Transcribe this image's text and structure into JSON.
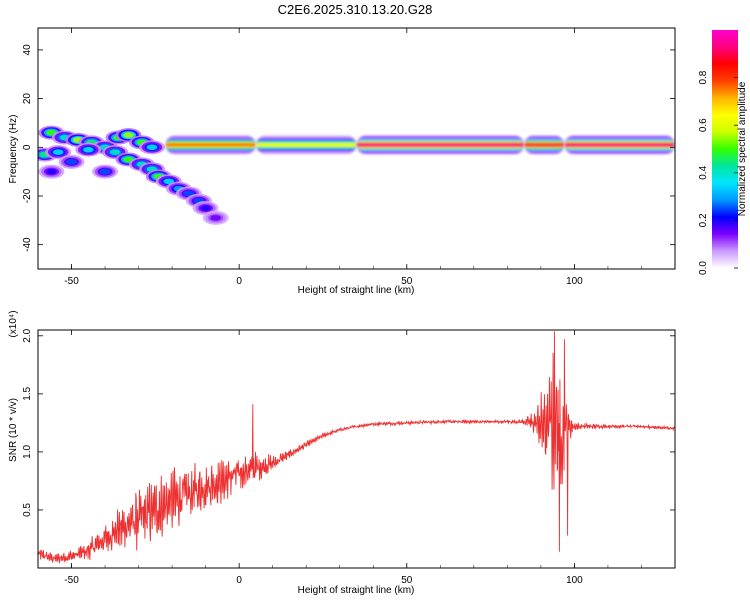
{
  "title": "C2E6.2025.310.13.20.G28",
  "chart_data": [
    {
      "type": "heatmap",
      "xlabel": "Height of straight line (km)",
      "ylabel": "Frequency (Hz)",
      "xlim": [
        -60,
        130
      ],
      "ylim": [
        -50,
        49
      ],
      "xticks": [
        -50,
        0,
        50,
        100
      ],
      "yticks": [
        -40,
        -20,
        0,
        20,
        40
      ],
      "colorbar": {
        "label": "Normalized spectral amplitude",
        "range": [
          0,
          1
        ],
        "ticks": [
          "0.0",
          "0.2",
          "0.4",
          "0.6",
          "0.8"
        ],
        "colors": [
          "#ffffff",
          "#cc99ff",
          "#7b00ff",
          "#0000ff",
          "#0099ff",
          "#00e5ff",
          "#00e5a0",
          "#33ff00",
          "#ccff00",
          "#ffff00",
          "#ffb300",
          "#ff4000",
          "#ff0000",
          "#ff0080",
          "#ff00cc"
        ]
      },
      "band": {
        "center_hz": 1,
        "segments": [
          {
            "x_start": -22,
            "x_end": 5,
            "peak": 0.8
          },
          {
            "x_start": 5,
            "x_end": 35,
            "peak": 0.65
          },
          {
            "x_start": 35,
            "x_end": 85,
            "peak": 0.95
          },
          {
            "x_start": 85,
            "x_end": 97,
            "peak": 0.9
          },
          {
            "x_start": 97,
            "x_end": 130,
            "peak": 0.95
          }
        ]
      },
      "scatter_blobs": [
        {
          "x": -56,
          "y": 6,
          "v": 0.45
        },
        {
          "x": -52,
          "y": 4,
          "v": 0.35
        },
        {
          "x": -48,
          "y": 3,
          "v": 0.5
        },
        {
          "x": -44,
          "y": 2,
          "v": 0.4
        },
        {
          "x": -40,
          "y": 0,
          "v": 0.35
        },
        {
          "x": -36,
          "y": 4,
          "v": 0.45
        },
        {
          "x": -33,
          "y": 5,
          "v": 0.5
        },
        {
          "x": -29,
          "y": 2,
          "v": 0.45
        },
        {
          "x": -26,
          "y": 0,
          "v": 0.3
        },
        {
          "x": -58,
          "y": -3,
          "v": 0.4
        },
        {
          "x": -54,
          "y": -2,
          "v": 0.3
        },
        {
          "x": -45,
          "y": -1,
          "v": 0.3
        },
        {
          "x": -37,
          "y": -2,
          "v": 0.35
        },
        {
          "x": -33,
          "y": -5,
          "v": 0.45
        },
        {
          "x": -29,
          "y": -7,
          "v": 0.35
        },
        {
          "x": -26,
          "y": -9,
          "v": 0.35
        },
        {
          "x": -24,
          "y": -12,
          "v": 0.45
        },
        {
          "x": -21,
          "y": -14,
          "v": 0.3
        },
        {
          "x": -18,
          "y": -17,
          "v": 0.25
        },
        {
          "x": -15,
          "y": -19,
          "v": 0.2
        },
        {
          "x": -12,
          "y": -22,
          "v": 0.2
        },
        {
          "x": -10,
          "y": -25,
          "v": 0.15
        },
        {
          "x": -7,
          "y": -29,
          "v": 0.1
        },
        {
          "x": -40,
          "y": -10,
          "v": 0.2
        },
        {
          "x": -50,
          "y": -6,
          "v": 0.2
        },
        {
          "x": -56,
          "y": -10,
          "v": 0.15
        }
      ]
    },
    {
      "type": "line",
      "xlabel": "Height of straight line (km)",
      "ylabel": "SNR (10 * v/v)",
      "y_multiplier": "(x10⁴)",
      "xlim": [
        -60,
        130
      ],
      "ylim": [
        0,
        2.05
      ],
      "xticks": [
        -50,
        0,
        50,
        100
      ],
      "yticks": [
        "0.5",
        "1.0",
        "1.5",
        "2.0"
      ],
      "color": "#ee3030",
      "envelope": {
        "x": [
          -60,
          -55,
          -50,
          -45,
          -40,
          -35,
          -30,
          -25,
          -20,
          -15,
          -10,
          -5,
          0,
          5,
          10,
          15,
          20,
          25,
          30,
          35,
          40,
          50,
          60,
          70,
          80,
          85,
          88,
          90,
          92,
          94,
          96,
          98,
          100,
          105,
          110,
          120,
          130
        ],
        "mean": [
          0.12,
          0.08,
          0.1,
          0.15,
          0.25,
          0.35,
          0.42,
          0.5,
          0.58,
          0.64,
          0.7,
          0.75,
          0.82,
          0.86,
          0.9,
          0.98,
          1.06,
          1.14,
          1.19,
          1.22,
          1.24,
          1.25,
          1.26,
          1.26,
          1.26,
          1.26,
          1.25,
          1.24,
          1.2,
          1.25,
          1.2,
          1.23,
          1.22,
          1.22,
          1.22,
          1.22,
          1.2
        ],
        "spread": [
          0.08,
          0.06,
          0.08,
          0.12,
          0.18,
          0.28,
          0.36,
          0.4,
          0.4,
          0.36,
          0.32,
          0.26,
          0.22,
          0.2,
          0.1,
          0.05,
          0.04,
          0.03,
          0.02,
          0.02,
          0.02,
          0.02,
          0.02,
          0.02,
          0.02,
          0.03,
          0.15,
          0.35,
          0.7,
          0.85,
          0.8,
          0.25,
          0.05,
          0.03,
          0.02,
          0.02,
          0.02
        ]
      },
      "spikes": [
        {
          "x": 4,
          "y": 1.41
        },
        {
          "x": 94,
          "y": 2.04
        },
        {
          "x": 97,
          "y": 1.97
        },
        {
          "x": 95.5,
          "y": 0.14
        },
        {
          "x": 98,
          "y": 0.28
        }
      ]
    }
  ]
}
